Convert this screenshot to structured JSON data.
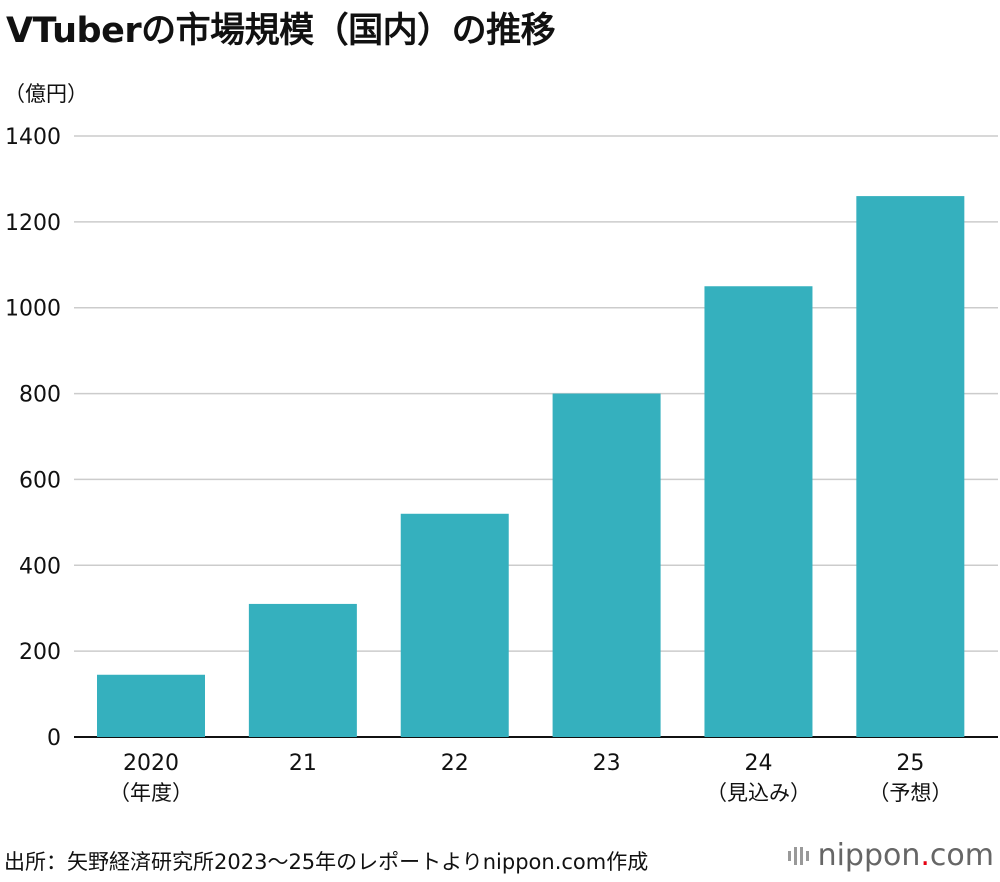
{
  "title": "VTuberの市場規模（国内）の推移",
  "unit_label": "（億円）",
  "source": "出所：矢野経済研究所2023〜25年のレポートよりnippon.com作成",
  "brand": {
    "name": "nippon",
    "dot": ".",
    "suffix": "com"
  },
  "colors": {
    "bar": "#35b0be",
    "grid": "#cccccc",
    "axis": "#111111",
    "brand_dot": "#e60012"
  },
  "chart_data": {
    "type": "bar",
    "categories": [
      "2020",
      "21",
      "22",
      "23",
      "24",
      "25"
    ],
    "category_sublabels": [
      "（年度）",
      "",
      "",
      "",
      "（見込み）",
      "（予想）"
    ],
    "values": [
      145,
      310,
      520,
      800,
      1050,
      1260
    ],
    "yticks": [
      0,
      200,
      400,
      600,
      800,
      1000,
      1200,
      1400
    ],
    "ylim": [
      0,
      1400
    ],
    "grid": true
  }
}
